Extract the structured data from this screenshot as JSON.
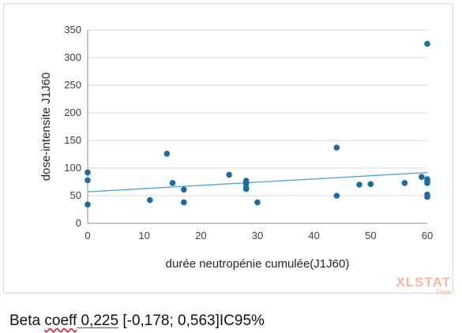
{
  "chart_data": {
    "type": "scatter",
    "xlabel": "durée neutropénie cumulée(J1J60)",
    "ylabel": "dose-intensite J1J60",
    "xlim": [
      0,
      60
    ],
    "ylim": [
      0,
      350
    ],
    "xticks": [
      "0",
      "10",
      "20",
      "30",
      "40",
      "50",
      "60"
    ],
    "yticks": [
      "0",
      "50",
      "100",
      "150",
      "200",
      "250",
      "300",
      "350"
    ],
    "grid": "horizontal",
    "legend": "none",
    "point_color": "#1f6b9a",
    "trendline_color": "#4aa3d0",
    "points": [
      {
        "x": 0,
        "y": 92
      },
      {
        "x": 0,
        "y": 78
      },
      {
        "x": 0,
        "y": 34
      },
      {
        "x": 11,
        "y": 42
      },
      {
        "x": 14,
        "y": 126
      },
      {
        "x": 15,
        "y": 73
      },
      {
        "x": 17,
        "y": 61
      },
      {
        "x": 17,
        "y": 38
      },
      {
        "x": 25,
        "y": 88
      },
      {
        "x": 28,
        "y": 77
      },
      {
        "x": 28,
        "y": 72
      },
      {
        "x": 28,
        "y": 65
      },
      {
        "x": 28,
        "y": 62
      },
      {
        "x": 30,
        "y": 38
      },
      {
        "x": 44,
        "y": 137
      },
      {
        "x": 44,
        "y": 50
      },
      {
        "x": 48,
        "y": 70
      },
      {
        "x": 50,
        "y": 71
      },
      {
        "x": 56,
        "y": 73
      },
      {
        "x": 59,
        "y": 84
      },
      {
        "x": 60,
        "y": 325
      },
      {
        "x": 60,
        "y": 80
      },
      {
        "x": 60,
        "y": 76
      },
      {
        "x": 60,
        "y": 73
      },
      {
        "x": 60,
        "y": 52
      },
      {
        "x": 60,
        "y": 48
      }
    ],
    "trendline": {
      "x": [
        0,
        60
      ],
      "y": [
        57,
        92
      ]
    }
  },
  "watermark": {
    "brand": "XLSTAT",
    "edition": "Free"
  },
  "caption": {
    "prefix": "Beta ",
    "coeff_word": "coeff",
    "value": " 0,225",
    "interval": " [-0,178; 0,563]IC95%"
  }
}
